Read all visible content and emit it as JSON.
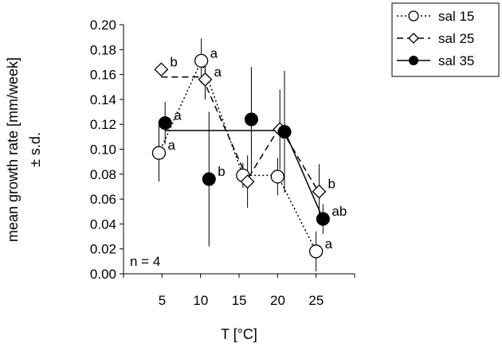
{
  "chart_data": {
    "type": "scatter",
    "xlabel": "T [°C]",
    "ylabel_line1": "mean growth rate [mm/week]",
    "ylabel_line2": "± s.d.",
    "xlim": [
      0,
      30
    ],
    "ylim": [
      0,
      0.2
    ],
    "x_ticks": [
      "5",
      "10",
      "15",
      "20",
      "25"
    ],
    "x_tick_values": [
      5,
      10,
      15,
      20,
      25
    ],
    "y_ticks": [
      "0.00",
      "0.02",
      "0.04",
      "0.06",
      "0.08",
      "0.10",
      "0.12",
      "0.14",
      "0.16",
      "0.18",
      "0.20"
    ],
    "y_tick_values": [
      0,
      0.02,
      0.04,
      0.06,
      0.08,
      0.1,
      0.12,
      0.14,
      0.16,
      0.18,
      0.2
    ],
    "note": "n = 4",
    "legend_position": "top-right",
    "series": [
      {
        "name": "sal 15",
        "marker": "circle-open",
        "line": "dotted",
        "points": [
          {
            "x": 4.6,
            "y": 0.097,
            "sd": 0.023,
            "label": "a"
          },
          {
            "x": 10.1,
            "y": 0.171,
            "sd": 0.018,
            "label": "a"
          },
          {
            "x": 15.5,
            "y": 0.079,
            "sd": 0.01,
            "label": ""
          },
          {
            "x": 20.0,
            "y": 0.078,
            "sd": 0.015,
            "label": ""
          },
          {
            "x": 25.0,
            "y": 0.018,
            "sd": 0.016,
            "label": "a"
          }
        ]
      },
      {
        "name": "sal 25",
        "marker": "diamond-open",
        "line": "dashed",
        "points": [
          {
            "x": 4.9,
            "y": 0.164,
            "sd": 0.003,
            "label": "b"
          },
          {
            "x": 10.6,
            "y": 0.156,
            "sd": 0.016,
            "label": "a"
          },
          {
            "x": 16.1,
            "y": 0.074,
            "sd": 0.021,
            "label": ""
          },
          {
            "x": 20.3,
            "y": 0.116,
            "sd": 0.032,
            "label": ""
          },
          {
            "x": 25.4,
            "y": 0.066,
            "sd": 0.022,
            "label": "b"
          }
        ]
      },
      {
        "name": "sal 35",
        "marker": "circle-filled",
        "line": "solid",
        "points": [
          {
            "x": 5.4,
            "y": 0.121,
            "sd": 0.017,
            "label": "a"
          },
          {
            "x": 11.1,
            "y": 0.076,
            "sd": 0.054,
            "label": "b"
          },
          {
            "x": 16.6,
            "y": 0.124,
            "sd": 0.042,
            "label": ""
          },
          {
            "x": 20.9,
            "y": 0.114,
            "sd": 0.049,
            "label": ""
          },
          {
            "x": 25.9,
            "y": 0.044,
            "sd": 0.012,
            "label": "ab"
          }
        ]
      }
    ],
    "fit_lines": [
      {
        "series": "sal 15",
        "style": "dotted",
        "points": [
          [
            4.6,
            0.097
          ],
          [
            10.1,
            0.171
          ],
          [
            15.5,
            0.079
          ],
          [
            20.0,
            0.079
          ],
          [
            25.0,
            0.018
          ]
        ]
      },
      {
        "series": "sal 25",
        "style": "dashed",
        "points": [
          [
            4.9,
            0.158
          ],
          [
            10.2,
            0.158
          ],
          [
            16.1,
            0.076
          ],
          [
            20.3,
            0.118
          ],
          [
            25.4,
            0.065
          ]
        ]
      },
      {
        "series": "sal 35",
        "style": "solid",
        "points": [
          [
            5.4,
            0.115
          ],
          [
            20.9,
            0.115
          ],
          [
            25.9,
            0.044
          ]
        ]
      }
    ]
  }
}
